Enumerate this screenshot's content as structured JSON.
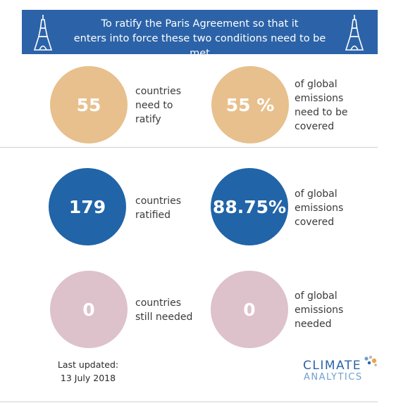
{
  "banner": {
    "line1": "To ratify the Paris Agreement so that it",
    "line2": "enters into force these two conditions need to be met",
    "left_icon": "eiffel-tower-icon",
    "right_icon": "eiffel-tower-icon"
  },
  "conditions": {
    "countries": {
      "value": "55",
      "label": "countries\nneed to\nratify"
    },
    "emissions": {
      "value": "55 %",
      "label": "of global\nemissions\nneed to be\ncovered"
    }
  },
  "ratified": {
    "countries": {
      "value": "179",
      "label": "countries\nratified"
    },
    "emissions": {
      "value": "88.75%",
      "label": "of global\nemissions\ncovered"
    }
  },
  "needed": {
    "countries": {
      "value": "0",
      "label": "countries\nstill needed"
    },
    "emissions": {
      "value": "0",
      "label": "of global\nemissions\nneeded"
    }
  },
  "footer": {
    "updated_line1": "Last updated:",
    "updated_line2": "13 July 2018",
    "logo_word1": "CLIMATE",
    "logo_word2": "ANALYTICS"
  },
  "colors": {
    "banner": "#2c63a8",
    "conditions": "#e7c08d",
    "ratified": "#2164a8",
    "needed": "#ddc1cb"
  }
}
